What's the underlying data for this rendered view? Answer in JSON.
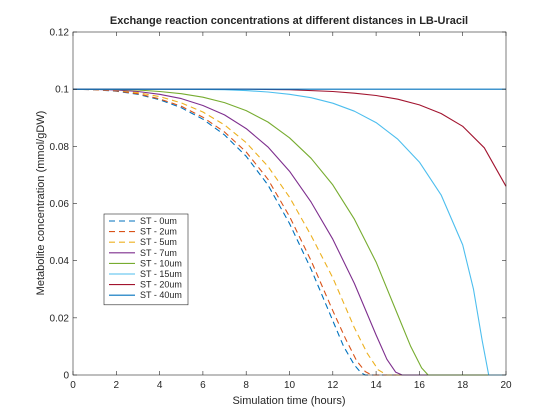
{
  "chart_data": {
    "type": "line",
    "title": "Exchange reaction concentrations at different distances in LB-Uracil",
    "xlabel": "Simulation time (hours)",
    "ylabel": "Metabolite concentration (mmol/gDW)",
    "xlim": [
      0,
      20
    ],
    "ylim": [
      0,
      0.12
    ],
    "xticks": [
      0,
      2,
      4,
      6,
      8,
      10,
      12,
      14,
      16,
      18,
      20
    ],
    "xtick_labels": [
      "0",
      "2",
      "4",
      "6",
      "8",
      "10",
      "12",
      "14",
      "16",
      "18",
      "20"
    ],
    "yticks": [
      0,
      0.02,
      0.04,
      0.06,
      0.08,
      0.1,
      0.12
    ],
    "ytick_labels": [
      "0",
      "0.02",
      "0.04",
      "0.06",
      "0.08",
      "0.1",
      "0.12"
    ],
    "grid": false,
    "legend_position": "lower-left",
    "series": [
      {
        "name": "ST - 0um",
        "color": "#0072BD",
        "dash": true,
        "x": [
          0,
          1,
          2,
          3,
          4,
          5,
          6,
          7,
          8,
          9,
          10,
          11,
          12,
          12.5,
          13,
          13.3,
          13.5,
          20
        ],
        "y": [
          0.1,
          0.0998,
          0.0993,
          0.0982,
          0.0963,
          0.0935,
          0.0895,
          0.084,
          0.0765,
          0.0665,
          0.053,
          0.037,
          0.019,
          0.01,
          0.0035,
          0.0008,
          0,
          0
        ]
      },
      {
        "name": "ST - 2um",
        "color": "#D95319",
        "dash": true,
        "x": [
          0,
          1,
          2,
          3,
          4,
          5,
          6,
          7,
          8,
          9,
          10,
          11,
          12,
          12.6,
          13.1,
          13.5,
          13.8,
          20
        ],
        "y": [
          0.1,
          0.0998,
          0.0994,
          0.0984,
          0.0966,
          0.094,
          0.0902,
          0.085,
          0.078,
          0.0685,
          0.0555,
          0.04,
          0.0225,
          0.0125,
          0.005,
          0.0012,
          0,
          0
        ]
      },
      {
        "name": "ST - 5um",
        "color": "#EDB120",
        "dash": true,
        "x": [
          0,
          1,
          2,
          3,
          4,
          5,
          6,
          7,
          8,
          9,
          10,
          11,
          12,
          13,
          13.6,
          14.1,
          14.5,
          20
        ],
        "y": [
          0.1,
          0.0999,
          0.0996,
          0.0988,
          0.0974,
          0.0952,
          0.092,
          0.0875,
          0.0813,
          0.073,
          0.0622,
          0.0488,
          0.034,
          0.0165,
          0.0075,
          0.0018,
          0,
          0
        ]
      },
      {
        "name": "ST - 7um",
        "color": "#7E2F8E",
        "dash": false,
        "x": [
          0,
          1,
          2,
          3,
          4,
          5,
          6,
          7,
          8,
          9,
          10,
          11,
          12,
          13,
          14,
          14.5,
          14.9,
          15.2,
          20
        ],
        "y": [
          0.1,
          0.0999,
          0.0997,
          0.0992,
          0.0982,
          0.0967,
          0.0943,
          0.091,
          0.0862,
          0.0798,
          0.0713,
          0.0605,
          0.0475,
          0.032,
          0.014,
          0.0055,
          0.001,
          0,
          0
        ]
      },
      {
        "name": "ST - 10um",
        "color": "#77AC30",
        "dash": false,
        "x": [
          0,
          1,
          2,
          3,
          4,
          5,
          6,
          7,
          8,
          9,
          10,
          11,
          12,
          13,
          14,
          15,
          15.6,
          16.1,
          16.4,
          20
        ],
        "y": [
          0.1,
          0.1,
          0.0999,
          0.0997,
          0.0992,
          0.0984,
          0.0972,
          0.0953,
          0.0925,
          0.0885,
          0.083,
          0.0758,
          0.0665,
          0.0545,
          0.0395,
          0.021,
          0.01,
          0.0025,
          0,
          0
        ]
      },
      {
        "name": "ST - 15um",
        "color": "#4DBEEE",
        "dash": false,
        "x": [
          0,
          2,
          4,
          6,
          7,
          8,
          9,
          10,
          11,
          12,
          13,
          14,
          15,
          16,
          17,
          18,
          18.5,
          18.9,
          19.2,
          20
        ],
        "y": [
          0.1,
          0.1,
          0.1,
          0.0999,
          0.0998,
          0.0995,
          0.099,
          0.0982,
          0.097,
          0.0951,
          0.0923,
          0.0883,
          0.0825,
          0.0745,
          0.063,
          0.0455,
          0.03,
          0.012,
          0,
          0
        ]
      },
      {
        "name": "ST - 20um",
        "color": "#A2142F",
        "dash": false,
        "x": [
          0,
          8,
          10,
          12,
          13,
          14,
          15,
          16,
          17,
          18,
          19,
          20
        ],
        "y": [
          0.1,
          0.1,
          0.0998,
          0.0992,
          0.0986,
          0.0978,
          0.0965,
          0.0945,
          0.0915,
          0.087,
          0.0795,
          0.066
        ]
      },
      {
        "name": "ST - 40um",
        "color": "#0072BD",
        "dash": false,
        "x": [
          0,
          20
        ],
        "y": [
          0.1,
          0.1
        ]
      }
    ]
  }
}
